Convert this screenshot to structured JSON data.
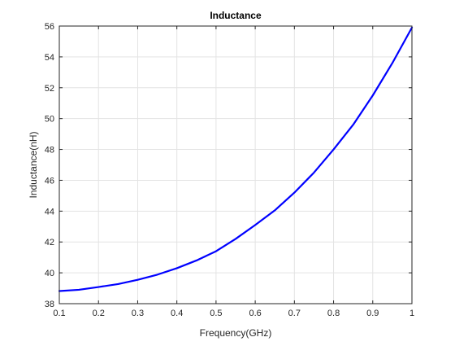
{
  "chart_data": {
    "type": "line",
    "title": "Inductance",
    "xlabel": "Frequency(GHz)",
    "ylabel": "Inductance(nH)",
    "xlim": [
      0.1,
      1.0
    ],
    "ylim": [
      38,
      56
    ],
    "xticks": [
      0.1,
      0.2,
      0.3,
      0.4,
      0.5,
      0.6,
      0.7,
      0.8,
      0.9,
      1.0
    ],
    "xtick_labels": [
      "0.1",
      "0.2",
      "0.3",
      "0.4",
      "0.5",
      "0.6",
      "0.7",
      "0.8",
      "0.9",
      "1"
    ],
    "yticks": [
      38,
      40,
      42,
      44,
      46,
      48,
      50,
      52,
      54,
      56
    ],
    "ytick_labels": [
      "38",
      "40",
      "42",
      "44",
      "46",
      "48",
      "50",
      "52",
      "54",
      "56"
    ],
    "grid": true,
    "legend": null,
    "series": [
      {
        "color": "#0000FF",
        "x": [
          0.1,
          0.15,
          0.2,
          0.25,
          0.3,
          0.35,
          0.4,
          0.45,
          0.5,
          0.55,
          0.6,
          0.65,
          0.7,
          0.75,
          0.8,
          0.85,
          0.9,
          0.95,
          1.0
        ],
        "y": [
          38.82,
          38.9,
          39.08,
          39.27,
          39.55,
          39.88,
          40.3,
          40.8,
          41.4,
          42.2,
          43.1,
          44.05,
          45.2,
          46.5,
          48.0,
          49.6,
          51.5,
          53.6,
          55.9
        ]
      }
    ]
  }
}
